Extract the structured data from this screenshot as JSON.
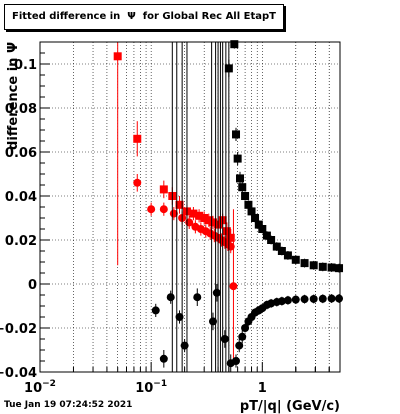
{
  "title": "Fitted difference in  Ψ  for Global Rec All EtapT",
  "timestamp": "Tue Jan 19 07:24:52 2021",
  "chart_data": {
    "type": "scatter",
    "xlabel": "pT/|q| (GeV/c)",
    "ylabel": "difference in Ψ",
    "xscale": "log",
    "xlim": [
      0.01,
      5
    ],
    "ylim": [
      -0.04,
      0.11
    ],
    "grid": true,
    "x_tick_labels": [
      {
        "value": 0.01,
        "base": "10",
        "exp": "−2"
      },
      {
        "value": 0.1,
        "base": "10",
        "exp": "−1"
      },
      {
        "value": 1,
        "base": "1",
        "exp": ""
      }
    ],
    "y_ticks": [
      -0.04,
      -0.02,
      0,
      0.02,
      0.04,
      0.06,
      0.08,
      0.1
    ],
    "y_tick_labels": [
      "−0.04",
      "−0.02",
      "0",
      "0.02",
      "0.04",
      "0.06",
      "0.08",
      "0.1"
    ],
    "series": [
      {
        "color": "#ff0000",
        "marker": "square",
        "points": [
          {
            "x": 0.05,
            "y": 0.1035,
            "err": 0.095
          },
          {
            "x": 0.075,
            "y": 0.066,
            "err": 0.008
          },
          {
            "x": 0.13,
            "y": 0.043,
            "err": 0.004
          },
          {
            "x": 0.155,
            "y": 0.04,
            "err": 0.004
          },
          {
            "x": 0.18,
            "y": 0.036,
            "err": 0.004
          },
          {
            "x": 0.21,
            "y": 0.033,
            "err": 0.003
          },
          {
            "x": 0.24,
            "y": 0.032,
            "err": 0.003
          },
          {
            "x": 0.27,
            "y": 0.031,
            "err": 0.003
          },
          {
            "x": 0.3,
            "y": 0.03,
            "err": 0.003
          },
          {
            "x": 0.33,
            "y": 0.029,
            "err": 0.003
          },
          {
            "x": 0.36,
            "y": 0.028,
            "err": 0.003
          },
          {
            "x": 0.4,
            "y": 0.027,
            "err": 0.003
          },
          {
            "x": 0.44,
            "y": 0.029,
            "err": 0.003
          },
          {
            "x": 0.48,
            "y": 0.024,
            "err": 0.004
          },
          {
            "x": 0.52,
            "y": 0.021,
            "err": 0.004
          }
        ]
      },
      {
        "color": "#ff0000",
        "marker": "circle",
        "points": [
          {
            "x": 0.075,
            "y": 0.046,
            "err": 0.004
          },
          {
            "x": 0.1,
            "y": 0.034,
            "err": 0.003
          },
          {
            "x": 0.13,
            "y": 0.034,
            "err": 0.003
          },
          {
            "x": 0.16,
            "y": 0.032,
            "err": 0.003
          },
          {
            "x": 0.19,
            "y": 0.03,
            "err": 0.003
          },
          {
            "x": 0.22,
            "y": 0.028,
            "err": 0.003
          },
          {
            "x": 0.25,
            "y": 0.026,
            "err": 0.003
          },
          {
            "x": 0.28,
            "y": 0.025,
            "err": 0.003
          },
          {
            "x": 0.31,
            "y": 0.024,
            "err": 0.003
          },
          {
            "x": 0.34,
            "y": 0.023,
            "err": 0.003
          },
          {
            "x": 0.37,
            "y": 0.022,
            "err": 0.003
          },
          {
            "x": 0.4,
            "y": 0.021,
            "err": 0.003
          },
          {
            "x": 0.43,
            "y": 0.02,
            "err": 0.003
          },
          {
            "x": 0.46,
            "y": 0.019,
            "err": 0.003
          },
          {
            "x": 0.49,
            "y": 0.018,
            "err": 0.003
          },
          {
            "x": 0.52,
            "y": 0.017,
            "err": 0.003
          },
          {
            "x": 0.55,
            "y": -0.001,
            "err": 0.035
          }
        ]
      },
      {
        "color": "#000000",
        "marker": "square",
        "points": [
          {
            "x": 0.5,
            "y": 0.098,
            "err": 0.004
          },
          {
            "x": 0.56,
            "y": 0.109,
            "err": 0.002
          },
          {
            "x": 0.58,
            "y": 0.068,
            "err": 0.003
          },
          {
            "x": 0.6,
            "y": 0.057,
            "err": 0.003
          },
          {
            "x": 0.63,
            "y": 0.048,
            "err": 0.003
          },
          {
            "x": 0.66,
            "y": 0.044,
            "err": 0.003
          },
          {
            "x": 0.7,
            "y": 0.04,
            "err": 0.002
          },
          {
            "x": 0.75,
            "y": 0.036,
            "err": 0.002
          },
          {
            "x": 0.8,
            "y": 0.033,
            "err": 0.002
          },
          {
            "x": 0.86,
            "y": 0.03,
            "err": 0.002
          },
          {
            "x": 0.93,
            "y": 0.027,
            "err": 0.002
          },
          {
            "x": 1.0,
            "y": 0.025,
            "err": 0.002
          },
          {
            "x": 1.1,
            "y": 0.022,
            "err": 0.002
          },
          {
            "x": 1.2,
            "y": 0.02,
            "err": 0.002
          },
          {
            "x": 1.35,
            "y": 0.017,
            "err": 0.002
          },
          {
            "x": 1.5,
            "y": 0.015,
            "err": 0.002
          },
          {
            "x": 1.7,
            "y": 0.013,
            "err": 0.002
          },
          {
            "x": 2.0,
            "y": 0.011,
            "err": 0.002
          },
          {
            "x": 2.4,
            "y": 0.0095,
            "err": 0.002
          },
          {
            "x": 2.9,
            "y": 0.0085,
            "err": 0.002
          },
          {
            "x": 3.5,
            "y": 0.0078,
            "err": 0.002
          },
          {
            "x": 4.2,
            "y": 0.0075,
            "err": 0.002
          },
          {
            "x": 4.9,
            "y": 0.0072,
            "err": 0.002
          }
        ]
      },
      {
        "color": "#000000",
        "marker": "circle",
        "points": [
          {
            "x": 0.11,
            "y": -0.012,
            "err": 0.003
          },
          {
            "x": 0.13,
            "y": -0.034,
            "err": 0.004
          },
          {
            "x": 0.15,
            "y": -0.006,
            "err": 0.003
          },
          {
            "x": 0.18,
            "y": -0.015,
            "err": 0.003
          },
          {
            "x": 0.2,
            "y": -0.028,
            "err": 0.003
          },
          {
            "x": 0.26,
            "y": -0.006,
            "err": 0.004
          },
          {
            "x": 0.36,
            "y": -0.017,
            "err": 0.004
          },
          {
            "x": 0.39,
            "y": -0.004,
            "err": 0.004
          },
          {
            "x": 0.46,
            "y": -0.025,
            "err": 0.004
          },
          {
            "x": 0.52,
            "y": -0.036,
            "err": 0.004
          },
          {
            "x": 0.58,
            "y": -0.035,
            "err": 0.003
          },
          {
            "x": 0.62,
            "y": -0.028,
            "err": 0.003
          },
          {
            "x": 0.66,
            "y": -0.024,
            "err": 0.003
          },
          {
            "x": 0.7,
            "y": -0.02,
            "err": 0.002
          },
          {
            "x": 0.75,
            "y": -0.017,
            "err": 0.002
          },
          {
            "x": 0.8,
            "y": -0.015,
            "err": 0.002
          },
          {
            "x": 0.86,
            "y": -0.013,
            "err": 0.002
          },
          {
            "x": 0.93,
            "y": -0.012,
            "err": 0.002
          },
          {
            "x": 1.0,
            "y": -0.011,
            "err": 0.002
          },
          {
            "x": 1.1,
            "y": -0.0095,
            "err": 0.002
          },
          {
            "x": 1.2,
            "y": -0.0088,
            "err": 0.002
          },
          {
            "x": 1.35,
            "y": -0.0082,
            "err": 0.002
          },
          {
            "x": 1.5,
            "y": -0.0078,
            "err": 0.002
          },
          {
            "x": 1.7,
            "y": -0.0074,
            "err": 0.002
          },
          {
            "x": 2.0,
            "y": -0.0071,
            "err": 0.002
          },
          {
            "x": 2.4,
            "y": -0.0069,
            "err": 0.002
          },
          {
            "x": 2.9,
            "y": -0.0068,
            "err": 0.002
          },
          {
            "x": 3.5,
            "y": -0.0067,
            "err": 0.002
          },
          {
            "x": 4.2,
            "y": -0.0066,
            "err": 0.002
          },
          {
            "x": 4.9,
            "y": -0.0066,
            "err": 0.002
          }
        ]
      },
      {
        "color": "#000000",
        "marker": "none",
        "note_source": "vertical error bars extending beyond plot range",
        "points": [
          {
            "x": 0.155,
            "y": 0.03,
            "err": 0.2
          },
          {
            "x": 0.17,
            "y": 0.03,
            "err": 0.2
          },
          {
            "x": 0.19,
            "y": 0.03,
            "err": 0.2
          },
          {
            "x": 0.21,
            "y": 0.03,
            "err": 0.2
          },
          {
            "x": 0.35,
            "y": 0.03,
            "err": 0.2
          },
          {
            "x": 0.38,
            "y": 0.03,
            "err": 0.2
          },
          {
            "x": 0.4,
            "y": 0.03,
            "err": 0.2
          },
          {
            "x": 0.42,
            "y": 0.03,
            "err": 0.2
          },
          {
            "x": 0.44,
            "y": 0.03,
            "err": 0.2
          },
          {
            "x": 0.47,
            "y": 0.03,
            "err": 0.2
          },
          {
            "x": 0.5,
            "y": 0.03,
            "err": 0.2
          }
        ]
      }
    ]
  }
}
